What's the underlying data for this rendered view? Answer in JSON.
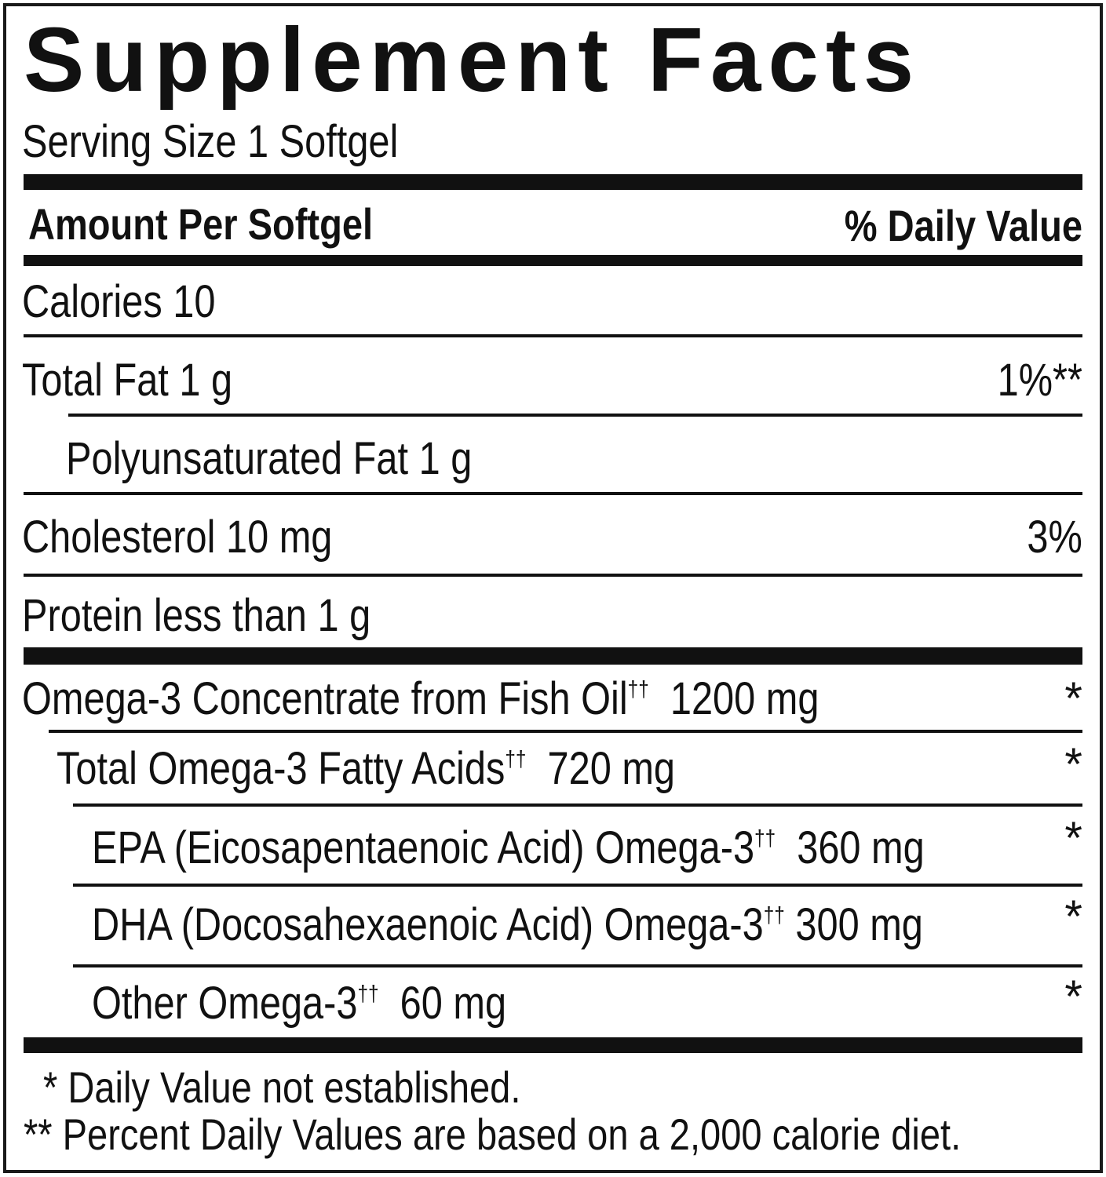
{
  "title": "Supplement Facts",
  "serving_size": "Serving Size 1 Softgel",
  "header": {
    "left": "Amount Per Softgel",
    "right": "% Daily Value"
  },
  "nutrients": [
    {
      "label": "Calories  10",
      "dv": ""
    },
    {
      "label": "Total Fat  1 g",
      "dv": "1%**"
    },
    {
      "label": "Polyunsaturated Fat  1 g",
      "dv": ""
    },
    {
      "label": "Cholesterol  10 mg",
      "dv": "3%"
    },
    {
      "label": "Protein  less than 1 g",
      "dv": ""
    }
  ],
  "ingredients": [
    {
      "name": "Omega-3 Concentrate from Fish Oil",
      "mark": "††",
      "amount": "1200 mg",
      "dv": "*"
    },
    {
      "name": "Total Omega-3 Fatty Acids",
      "mark": "††",
      "amount": "720 mg",
      "dv": "*"
    },
    {
      "name": "EPA (Eicosapentaenoic Acid) Omega-3",
      "mark": "††",
      "amount": "360 mg",
      "dv": "*"
    },
    {
      "name": "DHA (Docosahexaenoic Acid) Omega-3",
      "mark": "††",
      "amount": "300 mg",
      "dv": "*"
    },
    {
      "name": "Other Omega-3",
      "mark": "††",
      "amount": "60 mg",
      "dv": "*"
    }
  ],
  "footnotes": [
    "* Daily Value not established.",
    "** Percent Daily Values are based on a 2,000 calorie diet."
  ]
}
